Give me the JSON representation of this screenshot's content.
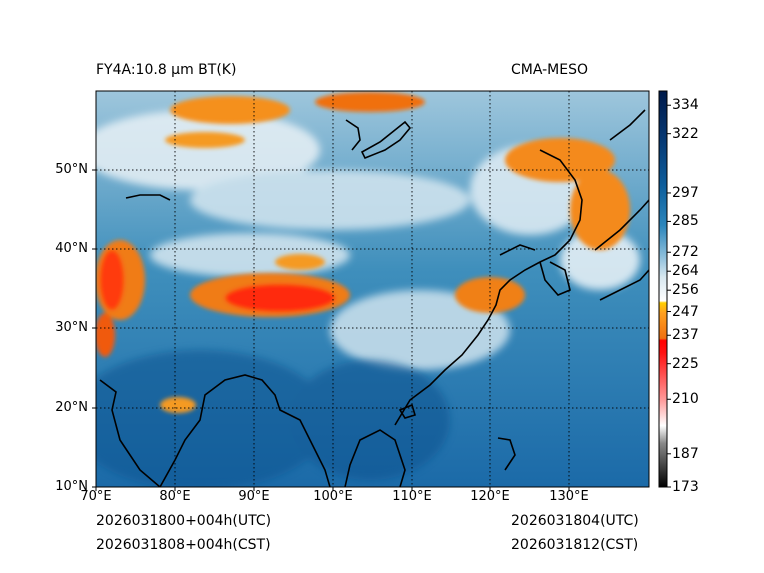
{
  "title_left": "FY4A:10.8 μm BT(K)",
  "title_right": "CMA-MESO",
  "lat_labels": [
    "50°N",
    "40°N",
    "30°N",
    "20°N",
    "10°N"
  ],
  "lon_labels": [
    "70°E",
    "80°E",
    "90°E",
    "100°E",
    "110°E",
    "120°E",
    "130°E"
  ],
  "colorbar": {
    "units": "K",
    "range": [
      173,
      340
    ],
    "ticks": [
      "334",
      "322",
      "297",
      "285",
      "272",
      "264",
      "256",
      "247",
      "237",
      "225",
      "210",
      "187",
      "173"
    ]
  },
  "footer": {
    "init_utc": "2026031800+004h(UTC)",
    "init_cst": "2026031808+004h(CST)",
    "valid_utc": "2026031804(UTC)",
    "valid_cst": "2026031812(CST)"
  }
}
